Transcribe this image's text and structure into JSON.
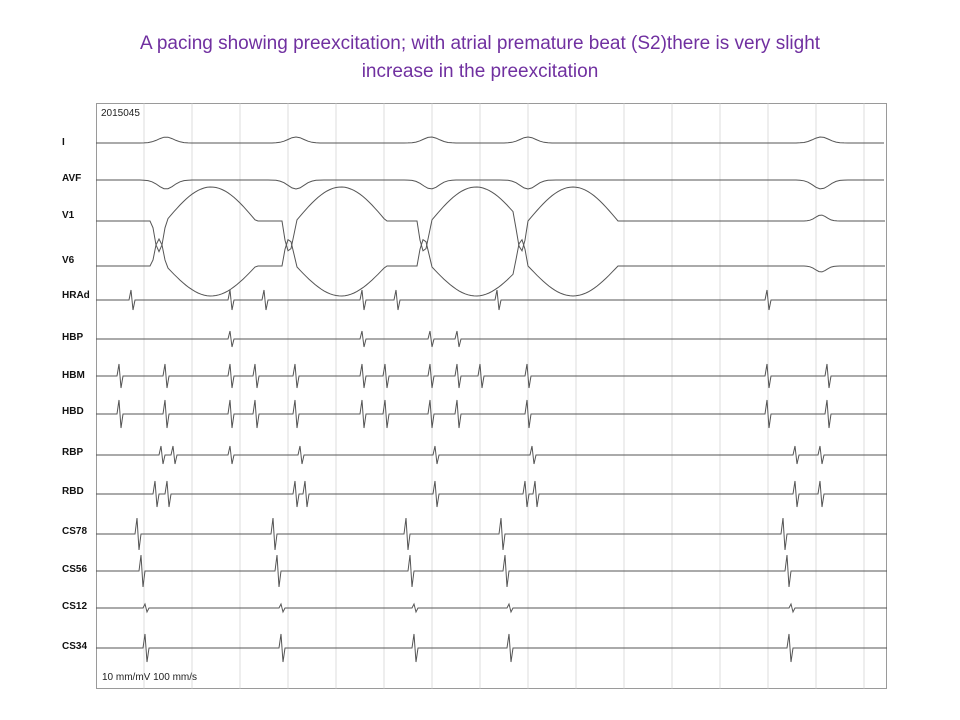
{
  "title": {
    "line1": "A pacing showing preexcitation; with atrial premature beat (S2)there is very slight",
    "line2": "increase in the preexcitation"
  },
  "recording": {
    "id": "2015045",
    "scale": "10 mm/mV   100 mm/s"
  },
  "leads": [
    "I",
    "AVF",
    "V1",
    "V6",
    "HRAd",
    "HBP",
    "HBM",
    "HBD",
    "RBP",
    "RBD",
    "CS78",
    "CS56",
    "CS12",
    "CS34"
  ],
  "colors": {
    "title": "#7030a0",
    "trace": "#555555",
    "grid": "#c8c8c8"
  }
}
